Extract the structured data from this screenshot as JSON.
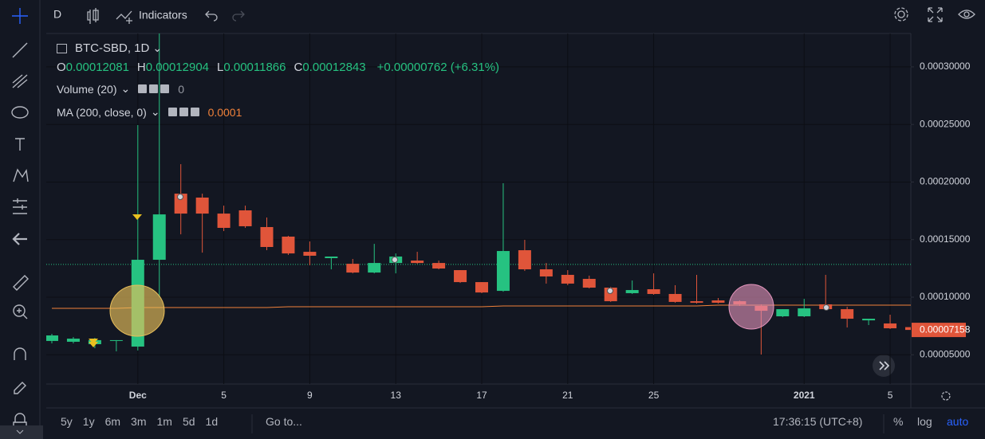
{
  "toolbar": {
    "interval": "D",
    "indicators": "Indicators"
  },
  "chart_data": {
    "type": "candlestick",
    "title": "BTC-SBD, 1D",
    "ohlc_legend": [
      {
        "label": "O",
        "value": 0.00012081
      },
      {
        "label": "H",
        "value": 0.00012904
      },
      {
        "label": "L",
        "value": 0.00011866
      },
      {
        "label": "C",
        "value": 0.00012843
      }
    ],
    "change": "+0.00000762 (+6.31%)",
    "volume": {
      "name": "Volume (20)",
      "last_value": 0
    },
    "categories": [
      null,
      null,
      null,
      null,
      "Dec",
      null,
      null,
      null,
      "5",
      null,
      null,
      null,
      "9",
      null,
      null,
      null,
      "13",
      null,
      null,
      null,
      "17",
      null,
      null,
      null,
      "21",
      null,
      null,
      null,
      "25",
      null,
      null,
      null,
      null,
      null,
      null,
      "2021",
      null,
      null,
      null,
      "5",
      null
    ],
    "open": [
      6.2e-05,
      6.13e-05,
      5.92e-05,
      6.2e-05,
      5.71e-05,
      0.0001325,
      0.0001899,
      0.0001865,
      0.0001726,
      0.0001754,
      0.0001609,
      0.0001526,
      0.0001394,
      0.0001339,
      0.000129,
      0.0001214,
      0.0001297,
      0.0001318,
      0.0001297,
      0.0001235,
      0.0001131,
      0.0001055,
      0.0001408,
      0.0001242,
      0.0001194,
      0.0001159,
      0.0001083,
      0.0001035,
      0.0001069,
      0.0001028,
      9.65e-05,
      9.72e-05,
      9.65e-05,
      9.24e-05,
      8.34e-05,
      8.34e-05,
      9.38e-05,
      8.96e-05,
      7.99e-05,
      7.72e-05,
      7.4e-05
    ],
    "high": [
      6.82e-05,
      6.54e-05,
      6.47e-05,
      6.27e-05,
      0.0002494,
      0.00033,
      0.0002155,
      0.0001899,
      0.0001795,
      0.0001795,
      0.0001692,
      0.0001533,
      0.0001484,
      0.0001353,
      0.0001332,
      0.0001463,
      0.000138,
      0.0001394,
      0.0001318,
      0.0001235,
      0.0001131,
      0.0001989,
      0.0001498,
      0.0001297,
      0.0001235,
      0.0001187,
      0.000109,
      0.0001145,
      0.0001207,
      0.0001104,
      0.0001194,
      9.93e-05,
      9.72e-05,
      9.38e-05,
      8.96e-05,
      9.86e-05,
      0.0001194,
      9.17e-05,
      8.13e-05,
      8.48e-05,
      7.45e-05
    ],
    "low": [
      5.99e-05,
      5.99e-05,
      5.57e-05,
      5.3e-05,
      5.37e-05,
      0.0001,
      0.0001546,
      0.0001387,
      0.0001574,
      0.0001602,
      0.0001408,
      0.0001367,
      0.0001277,
      0.0001242,
      0.0001207,
      0.0001207,
      0.0001207,
      0.000129,
      0.0001242,
      0.0001124,
      0.0001035,
      0.0001048,
      0.0001228,
      0.0001118,
      0.0001104,
      0.0001076,
      9.59e-05,
      0.0001028,
      0.0001021,
      9.52e-05,
      9.45e-05,
      9.45e-05,
      9.24e-05,
      5.02e-05,
      8.27e-05,
      8.27e-05,
      8.89e-05,
      7.37e-05,
      7.58e-05,
      7.24e-05,
      7.1e-05
    ],
    "close": [
      6.68e-05,
      6.4e-05,
      6.27e-05,
      6.27e-05,
      0.0001325,
      0.0001719,
      0.0001726,
      0.0001726,
      0.0001602,
      0.0001616,
      0.0001436,
      0.000138,
      0.000136,
      0.0001353,
      0.0001214,
      0.0001297,
      0.0001353,
      0.0001297,
      0.0001249,
      0.0001131,
      0.0001041,
      0.0001401,
      0.0001242,
      0.000118,
      0.0001118,
      0.0001083,
      9.65e-05,
      0.0001062,
      0.0001028,
      9.59e-05,
      9.52e-05,
      9.52e-05,
      9.38e-05,
      8.82e-05,
      8.96e-05,
      9.03e-05,
      8.96e-05,
      8.13e-05,
      8.13e-05,
      7.3e-05,
      7.158e-05
    ],
    "up_color": "#26c281",
    "down_color": "#e0553a",
    "ma": {
      "name": "MA (200, close, 0)",
      "last_value": 0.0001,
      "color": "#f0813a",
      "values": [
        9.03e-05,
        9.03e-05,
        9.03e-05,
        9.03e-05,
        9.1e-05,
        9.1e-05,
        9.1e-05,
        9.1e-05,
        9.1e-05,
        9.1e-05,
        9.1e-05,
        9.17e-05,
        9.17e-05,
        9.17e-05,
        9.17e-05,
        9.17e-05,
        9.17e-05,
        9.17e-05,
        9.17e-05,
        9.17e-05,
        9.17e-05,
        9.24e-05,
        9.24e-05,
        9.24e-05,
        9.24e-05,
        9.24e-05,
        9.24e-05,
        9.24e-05,
        9.24e-05,
        9.24e-05,
        9.24e-05,
        9.31e-05,
        9.31e-05,
        9.31e-05,
        9.31e-05,
        9.31e-05,
        9.31e-05,
        9.31e-05,
        9.31e-05,
        9.31e-05,
        9.31e-05
      ]
    },
    "ylim": [
      2.46e-05,
      0.000329
    ],
    "yticks": [
      {
        "value": 5e-05,
        "label": "0.00005000"
      },
      {
        "value": 0.0001,
        "label": "0.00010000"
      },
      {
        "value": 0.00015,
        "label": "0.00015000"
      },
      {
        "value": 0.0002,
        "label": "0.00020000"
      },
      {
        "value": 0.00025,
        "label": "0.00025000"
      },
      {
        "value": 0.0003,
        "label": "0.00030000"
      }
    ],
    "grid": true,
    "log_scale": false
  },
  "bottom_bar": {
    "ranges": [
      "5y",
      "1y",
      "6m",
      "3m",
      "1m",
      "5d",
      "1d"
    ],
    "goto": "Go to...",
    "time": "17:36:15 (UTC+8)",
    "percent": "%",
    "log": "log",
    "auto": "auto"
  }
}
